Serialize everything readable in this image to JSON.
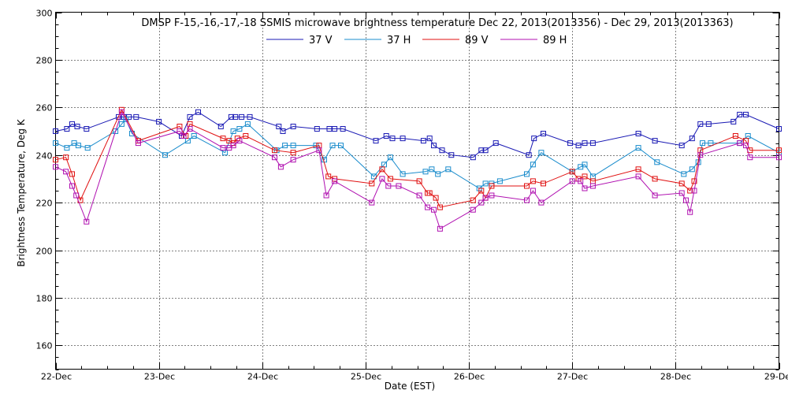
{
  "chart_data": {
    "type": "line",
    "title": "DMSP F-15,-16,-17,-18 SSMIS microwave brightness temperature Dec 22, 2013(2013356) - Dec 29, 2013(2013363)",
    "xlabel": "Date (EST)",
    "ylabel": "Brightness Temperature, Deg K",
    "xlim": [
      0,
      7
    ],
    "ylim": [
      150,
      300
    ],
    "yticks": [
      160,
      180,
      200,
      220,
      240,
      260,
      280,
      300
    ],
    "xtick_labels": [
      "22-Dec",
      "23-Dec",
      "24-Dec",
      "25-Dec",
      "26-Dec",
      "27-Dec",
      "28-Dec",
      "29-Dec"
    ],
    "grid": true,
    "legend_position": "top-center",
    "series": [
      {
        "name": "37 V",
        "color": "#1a1ab4",
        "x": [
          0.0,
          0.11,
          0.16,
          0.21,
          0.3,
          0.61,
          0.66,
          0.71,
          0.78,
          1.0,
          1.22,
          1.3,
          1.38,
          1.6,
          1.7,
          1.74,
          1.8,
          1.88,
          2.16,
          2.2,
          2.3,
          2.53,
          2.65,
          2.7,
          2.78,
          3.1,
          3.2,
          3.26,
          3.36,
          3.56,
          3.62,
          3.66,
          3.74,
          3.83,
          4.04,
          4.12,
          4.16,
          4.26,
          4.58,
          4.63,
          4.72,
          4.98,
          5.06,
          5.12,
          5.2,
          5.64,
          5.8,
          6.06,
          6.16,
          6.24,
          6.32,
          6.56,
          6.62,
          6.68,
          7.0
        ],
        "y": [
          250,
          251,
          253,
          252,
          251,
          256,
          256,
          256,
          256,
          254,
          248,
          256,
          258,
          252,
          256,
          256,
          256,
          256,
          252,
          250,
          252,
          251,
          251,
          251,
          251,
          246,
          248,
          247,
          247,
          246,
          247,
          244,
          242,
          240,
          239,
          242,
          242,
          245,
          240,
          247,
          249,
          245,
          244,
          245,
          245,
          249,
          246,
          244,
          247,
          253,
          253,
          254,
          257,
          257,
          251
        ]
      },
      {
        "name": "37 H",
        "color": "#1a8ccc",
        "x": [
          0.0,
          0.11,
          0.18,
          0.22,
          0.31,
          0.58,
          0.64,
          0.68,
          0.74,
          1.06,
          1.28,
          1.34,
          1.64,
          1.72,
          1.78,
          1.86,
          2.14,
          2.22,
          2.3,
          2.52,
          2.6,
          2.68,
          2.76,
          3.08,
          3.18,
          3.24,
          3.36,
          3.58,
          3.64,
          3.7,
          3.8,
          4.1,
          4.16,
          4.22,
          4.3,
          4.56,
          4.62,
          4.7,
          5.0,
          5.08,
          5.12,
          5.2,
          5.64,
          5.82,
          6.08,
          6.16,
          6.22,
          6.26,
          6.34,
          6.62,
          6.7,
          7.0
        ],
        "y": [
          245,
          243,
          245,
          244,
          243,
          250,
          253,
          255,
          249,
          240,
          246,
          248,
          241,
          250,
          251,
          253,
          242,
          244,
          244,
          244,
          238,
          244,
          244,
          231,
          236,
          239,
          232,
          233,
          234,
          232,
          234,
          226,
          228,
          228,
          229,
          232,
          236,
          241,
          233,
          235,
          236,
          231,
          243,
          237,
          232,
          234,
          237,
          245,
          245,
          245,
          248,
          241
        ]
      },
      {
        "name": "89 V",
        "color": "#e01010",
        "x": [
          0.0,
          0.1,
          0.16,
          0.24,
          0.64,
          0.8,
          1.2,
          1.26,
          1.3,
          1.62,
          1.68,
          1.72,
          1.76,
          1.84,
          2.12,
          2.3,
          2.55,
          2.64,
          2.7,
          3.06,
          3.16,
          3.24,
          3.52,
          3.6,
          3.62,
          3.68,
          3.72,
          4.04,
          4.12,
          4.16,
          4.22,
          4.56,
          4.62,
          4.72,
          5.0,
          5.06,
          5.12,
          5.2,
          5.64,
          5.8,
          6.06,
          6.14,
          6.18,
          6.24,
          6.58,
          6.68,
          6.72,
          7.0
        ],
        "y": [
          238,
          239,
          232,
          221,
          259,
          246,
          252,
          248,
          253,
          247,
          246,
          245,
          247,
          248,
          242,
          241,
          244,
          231,
          230,
          228,
          234,
          230,
          229,
          224,
          224,
          222,
          218,
          221,
          225,
          222,
          227,
          227,
          229,
          228,
          233,
          230,
          231,
          229,
          234,
          230,
          228,
          225,
          229,
          242,
          248,
          246,
          242,
          242
        ]
      },
      {
        "name": "89 H",
        "color": "#b010b0",
        "x": [
          0.0,
          0.1,
          0.16,
          0.2,
          0.3,
          0.64,
          0.8,
          1.2,
          1.24,
          1.3,
          1.62,
          1.68,
          1.72,
          1.78,
          2.12,
          2.18,
          2.3,
          2.55,
          2.62,
          2.7,
          3.06,
          3.16,
          3.22,
          3.32,
          3.52,
          3.6,
          3.66,
          3.72,
          4.04,
          4.12,
          4.16,
          4.22,
          4.56,
          4.62,
          4.7,
          5.0,
          5.08,
          5.12,
          5.2,
          5.64,
          5.8,
          6.06,
          6.1,
          6.14,
          6.18,
          6.24,
          6.62,
          6.68,
          6.72,
          7.0
        ],
        "y": [
          235,
          233,
          227,
          223,
          212,
          258,
          245,
          250,
          248,
          251,
          243,
          243,
          244,
          246,
          239,
          235,
          238,
          242,
          223,
          229,
          220,
          230,
          227,
          227,
          223,
          218,
          217,
          209,
          217,
          220,
          222,
          223,
          221,
          225,
          220,
          229,
          229,
          226,
          227,
          231,
          223,
          224,
          221,
          216,
          225,
          240,
          245,
          244,
          239,
          239
        ]
      }
    ]
  }
}
